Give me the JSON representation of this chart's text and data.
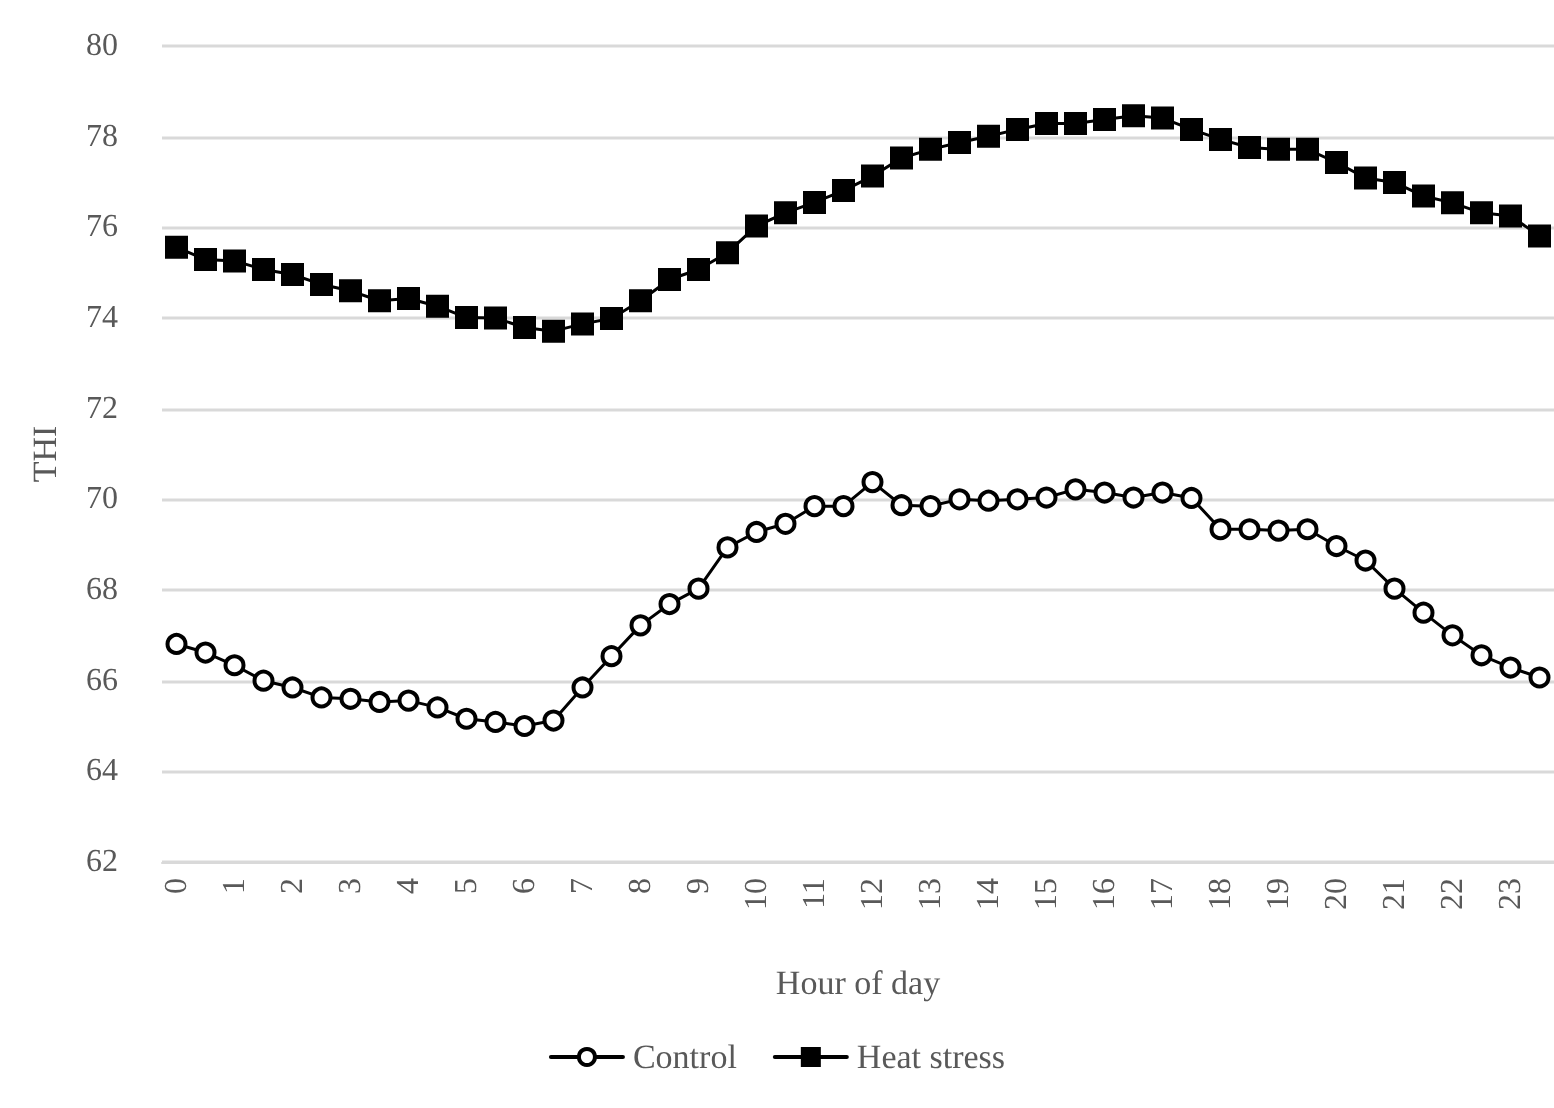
{
  "chart_data": {
    "type": "line",
    "xlabel": "Hour of day",
    "ylabel": "THI",
    "categories": [
      "0",
      null,
      "1",
      null,
      "2",
      null,
      "3",
      null,
      "4",
      null,
      "5",
      null,
      "6",
      null,
      "7",
      null,
      "8",
      null,
      "9",
      null,
      "10",
      null,
      "11",
      null,
      "12",
      null,
      "13",
      null,
      "14",
      null,
      "15",
      null,
      "16",
      null,
      "17",
      null,
      "18",
      null,
      "19",
      null,
      "20",
      null,
      "21",
      null,
      "22",
      null,
      "23",
      null
    ],
    "series": [
      {
        "name": "Control",
        "color": "#000000",
        "marker": "circle",
        "values": [
          66.81,
          66.62,
          66.34,
          66.0,
          65.85,
          65.63,
          65.6,
          65.53,
          65.56,
          65.41,
          65.16,
          65.09,
          65.0,
          65.12,
          65.85,
          66.54,
          67.22,
          67.69,
          68.03,
          68.94,
          69.28,
          69.46,
          69.85,
          69.85,
          70.38,
          69.87,
          69.85,
          70.0,
          69.97,
          70.0,
          70.04,
          70.22,
          70.15,
          70.04,
          70.15,
          70.03,
          69.34,
          69.34,
          69.31,
          69.34,
          68.97,
          68.65,
          68.03,
          67.5,
          67.0,
          66.56,
          66.29,
          66.07
        ]
      },
      {
        "name": "Heat stress",
        "color": "#000000",
        "marker": "square",
        "values": [
          75.56,
          75.29,
          75.26,
          75.07,
          74.96,
          74.74,
          74.6,
          74.38,
          74.43,
          74.26,
          74.01,
          74.0,
          73.79,
          73.71,
          73.87,
          73.99,
          74.38,
          74.85,
          75.07,
          75.44,
          76.03,
          76.32,
          76.55,
          76.81,
          77.13,
          77.53,
          77.72,
          77.87,
          78.01,
          78.16,
          78.29,
          78.29,
          78.38,
          78.46,
          78.41,
          78.16,
          77.94,
          77.76,
          77.72,
          77.72,
          77.43,
          77.09,
          76.99,
          76.69,
          76.54,
          76.32,
          76.25,
          75.81
        ]
      }
    ],
    "ylim": [
      62,
      80
    ],
    "yticks": [
      62,
      64,
      66,
      68,
      70,
      72,
      74,
      76,
      78,
      80
    ],
    "grid": "y",
    "legend": "bottom",
    "line_style": "solid"
  }
}
